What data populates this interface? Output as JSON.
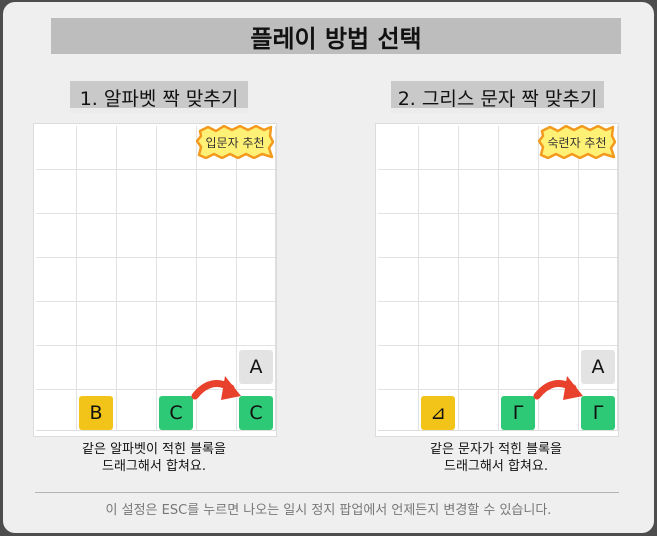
{
  "title": "플레이 방법 선택",
  "modes": [
    {
      "heading": "1. 알파벳 짝 맞추기",
      "badge": "입문자 추천",
      "tiles": {
        "b": "B",
        "c1": "C",
        "c2": "C",
        "a": "A"
      },
      "caption_line1": "같은 알파벳이 적힌 블록을",
      "caption_line2": "드래그해서 합쳐요."
    },
    {
      "heading": "2. 그리스 문자 짝 맞추기",
      "badge": "숙련자 추천",
      "tiles": {
        "b": "⊿",
        "c1": "Γ",
        "c2": "Γ",
        "a": "A"
      },
      "caption_line1": "같은 문자가 적힌 블록을",
      "caption_line2": "드래그해서 합쳐요."
    }
  ],
  "footer": "이 설정은 ESC를 누르면 나오는 일시 정지 팝업에서 언제든지 변경할 수 있습니다.",
  "colors": {
    "tile_yellow": "#f2c318",
    "tile_green": "#2ec976",
    "tile_gray": "#e3e3e3",
    "arrow_red": "#e8412c",
    "badge_fill": "#fff176",
    "badge_outline": "#f39a1e"
  }
}
